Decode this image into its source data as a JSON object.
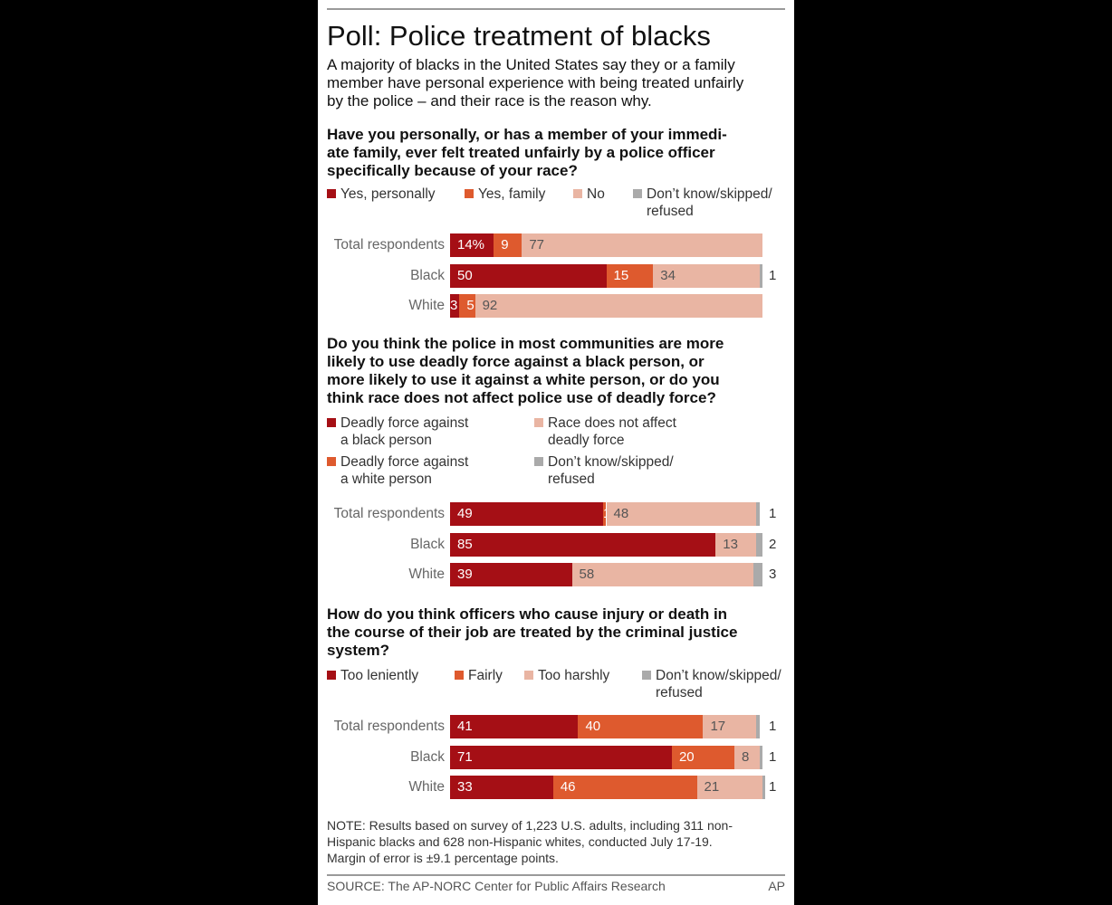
{
  "title": "Poll: Police treatment of blacks",
  "intro": "A majority of blacks in the United States say they or a family\nmember have personal experience with being treated unfairly\nby the police – and their race is the reason why.",
  "colors": {
    "dark_red": "#a50f15",
    "orange": "#de5a2e",
    "peach": "#e9b5a3",
    "gray": "#aaaaaa"
  },
  "chart_data": [
    {
      "type": "bar",
      "stacked": true,
      "orientation": "horizontal",
      "title": "Have you personally, or has a member of your immedi-\nate family, ever felt treated unfairly by a police officer\nspecifically because of your race?",
      "categories": [
        "Total respondents",
        "Black",
        "White"
      ],
      "series": [
        {
          "name": "Yes, personally",
          "values": [
            14,
            50,
            3
          ]
        },
        {
          "name": "Yes, family",
          "values": [
            9,
            15,
            5
          ]
        },
        {
          "name": "No",
          "values": [
            77,
            34,
            92
          ]
        },
        {
          "name": "Don’t know/skipped/\nrefused",
          "values": [
            0,
            1,
            0
          ]
        }
      ],
      "data_labels": [
        [
          "14%",
          "9",
          "77",
          ""
        ],
        [
          "50",
          "15",
          "34",
          "1"
        ],
        [
          "3",
          "5",
          "92",
          ""
        ]
      ],
      "xlim": [
        0,
        100
      ]
    },
    {
      "type": "bar",
      "stacked": true,
      "orientation": "horizontal",
      "title": "Do you think the police in most communities are more\nlikely to use deadly force against a black person, or\nmore likely to use it against a white person, or do you\nthink race does not affect police use of deadly force?",
      "categories": [
        "Total respondents",
        "Black",
        "White"
      ],
      "series": [
        {
          "name": "Deadly force against\na black person",
          "values": [
            49,
            85,
            39
          ]
        },
        {
          "name": "Deadly force against\na white person",
          "values": [
            1,
            0,
            0
          ]
        },
        {
          "name": "Race does not affect\ndeadly force",
          "values": [
            48,
            13,
            58
          ]
        },
        {
          "name": "Don’t know/skipped/\nrefused",
          "values": [
            1,
            2,
            3
          ]
        }
      ],
      "data_labels": [
        [
          "49",
          "1",
          "48",
          "1"
        ],
        [
          "85",
          "",
          "13",
          "2"
        ],
        [
          "39",
          "",
          "58",
          "3"
        ]
      ],
      "xlim": [
        0,
        100
      ]
    },
    {
      "type": "bar",
      "stacked": true,
      "orientation": "horizontal",
      "title": "How do you think officers who cause injury or death in\nthe course of their job are treated by the criminal justice\nsystem?",
      "categories": [
        "Total respondents",
        "Black",
        "White"
      ],
      "series": [
        {
          "name": "Too leniently",
          "values": [
            41,
            71,
            33
          ]
        },
        {
          "name": "Fairly",
          "values": [
            40,
            20,
            46
          ]
        },
        {
          "name": "Too harshly",
          "values": [
            17,
            8,
            21
          ]
        },
        {
          "name": "Don’t know/skipped/\nrefused",
          "values": [
            1,
            1,
            1
          ]
        }
      ],
      "data_labels": [
        [
          "41",
          "40",
          "17",
          "1"
        ],
        [
          "71",
          "20",
          "8",
          "1"
        ],
        [
          "33",
          "46",
          "21",
          "1"
        ]
      ],
      "xlim": [
        0,
        100
      ]
    }
  ],
  "note": "NOTE: Results based on survey of 1,223 U.S. adults, including 311 non-\nHispanic blacks and 628 non-Hispanic whites, conducted July 17-19.\n Margin of error is ±9.1 percentage points.",
  "source": "SOURCE: The AP-NORC Center for Public Affairs Research",
  "credit": "AP"
}
